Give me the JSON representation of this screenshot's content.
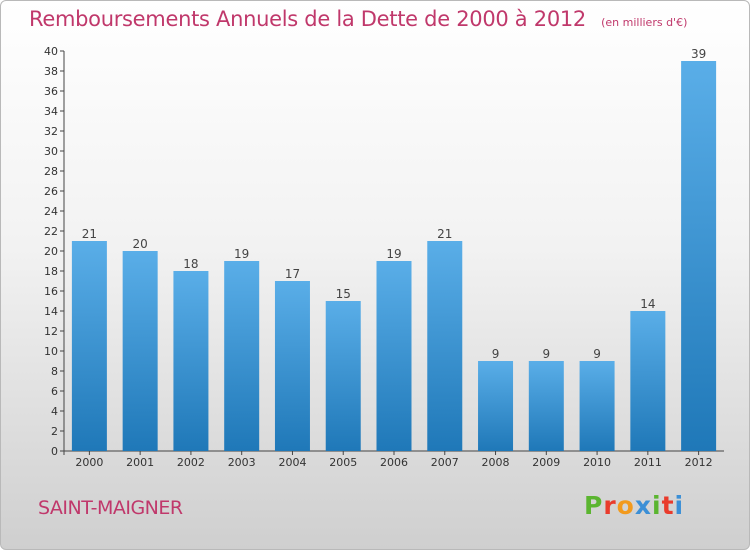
{
  "header": {
    "title": "Remboursements Annuels de la Dette de 2000 à 2012",
    "unit": "(en milliers d'€)"
  },
  "footer": {
    "commune": "SAINT-MAIGNER",
    "logo_letters": [
      "P",
      "r",
      "o",
      "x",
      "i",
      "t",
      "i"
    ],
    "logo_colors": [
      "#5bb530",
      "#e93b2c",
      "#f29a1d",
      "#3b8fd6",
      "#5bb530",
      "#e93b2c",
      "#3b8fd6"
    ]
  },
  "colors": {
    "bar_top": "#5aaee8",
    "bar_bottom": "#1f78b8",
    "title": "#c0386b",
    "axis": "#444444"
  },
  "chart_data": {
    "type": "bar",
    "title": "Remboursements Annuels de la Dette de 2000 à 2012",
    "categories": [
      "2000",
      "2001",
      "2002",
      "2003",
      "2004",
      "2005",
      "2006",
      "2007",
      "2008",
      "2009",
      "2010",
      "2011",
      "2012"
    ],
    "values": [
      21,
      20,
      18,
      19,
      17,
      15,
      19,
      21,
      9,
      9,
      9,
      14,
      39
    ],
    "ylim": [
      0,
      40
    ],
    "ytick_step": 2,
    "grid": false,
    "legend": "none"
  }
}
